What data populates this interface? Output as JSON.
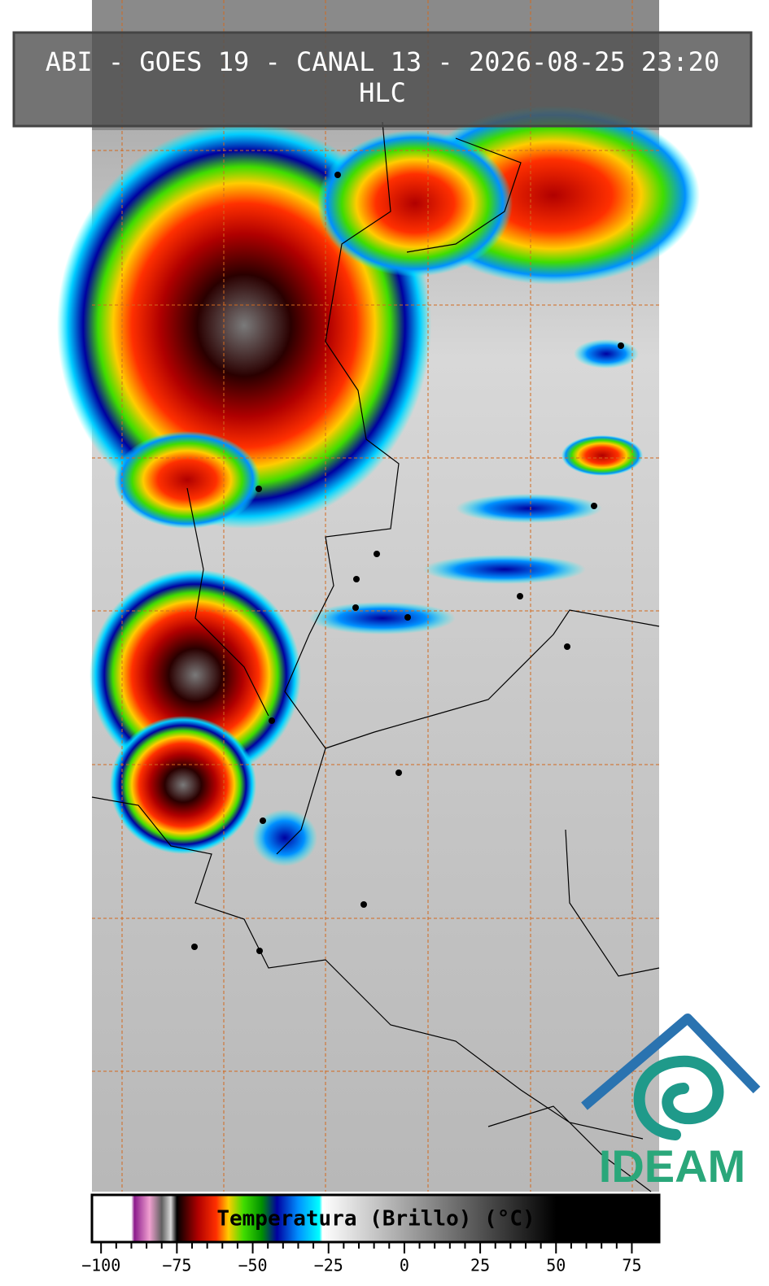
{
  "title": "ABI - GOES 19 - CANAL 13 - 2026-08-25 23:20",
  "subtitle": "HLC",
  "logo": {
    "text": "IDEAM"
  },
  "colorbar": {
    "label": "Temperatura (Brillo) (°C)",
    "lim": [
      -103,
      84
    ],
    "ticks": [
      {
        "value": -100,
        "label": "−100"
      },
      {
        "value": -75,
        "label": "−75"
      },
      {
        "value": -50,
        "label": "−50"
      },
      {
        "value": -25,
        "label": "−25"
      },
      0,
      25,
      50,
      75
    ],
    "stops": [
      {
        "value": -103,
        "color": "#ffffff"
      },
      {
        "value": -90,
        "color": "#ffffff"
      },
      {
        "value": -89,
        "color": "#8b1a8b"
      },
      {
        "value": -84,
        "color": "#f0a0d0"
      },
      {
        "value": -80,
        "color": "#606060"
      },
      {
        "value": -77,
        "color": "#d8d8d8"
      },
      {
        "value": -75,
        "color": "#000000"
      },
      {
        "value": -68,
        "color": "#b00000"
      },
      {
        "value": -62,
        "color": "#ff3000"
      },
      {
        "value": -58,
        "color": "#ffcc00"
      },
      {
        "value": -53,
        "color": "#40dd00"
      },
      {
        "value": -47,
        "color": "#009000"
      },
      {
        "value": -42,
        "color": "#0000a0"
      },
      {
        "value": -35,
        "color": "#0090ff"
      },
      {
        "value": -28,
        "color": "#00ffff"
      },
      {
        "value": -27,
        "color": "#ffffff"
      },
      {
        "value": 50,
        "color": "#000000"
      },
      {
        "value": 84,
        "color": "#000000"
      }
    ]
  }
}
